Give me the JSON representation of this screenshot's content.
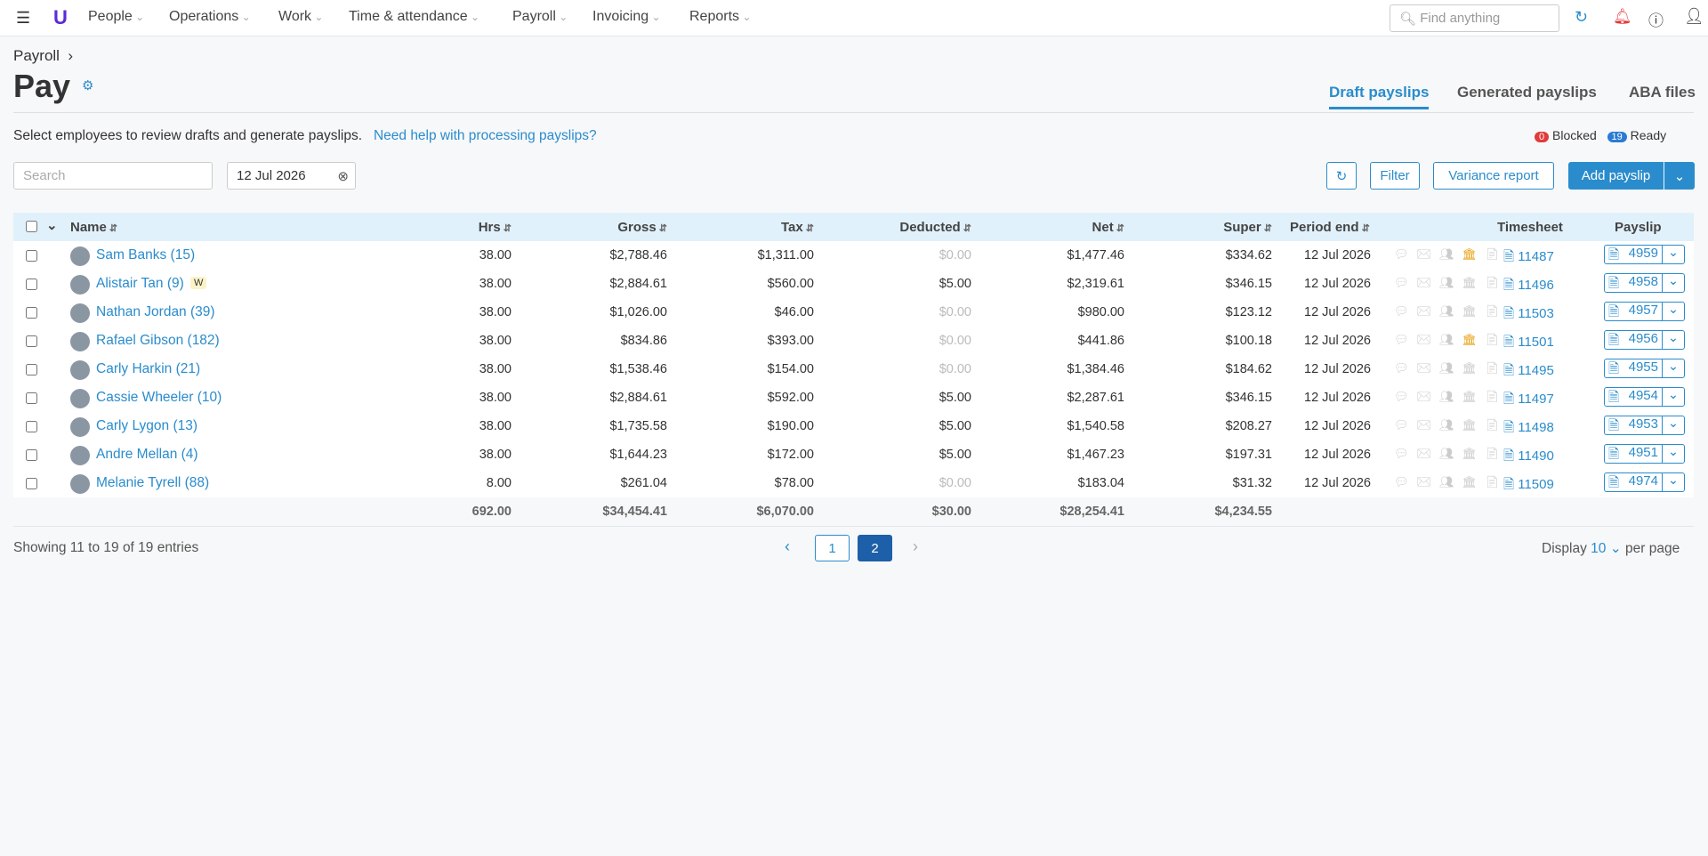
{
  "nav": {
    "items": [
      "People",
      "Operations",
      "Work",
      "Time & attendance",
      "Payroll",
      "Invoicing",
      "Reports"
    ],
    "search_placeholder": "Find anything"
  },
  "header": {
    "breadcrumb": "Payroll",
    "title": "Pay",
    "tabs": [
      "Draft payslips",
      "Generated payslips",
      "ABA files"
    ]
  },
  "intro": {
    "text": "Select employees to review drafts and generate payslips.",
    "help_link": "Need help with processing payslips?"
  },
  "status": {
    "blocked_count": "0",
    "blocked_label": "Blocked",
    "ready_count": "19",
    "ready_label": "Ready"
  },
  "toolbar": {
    "search_placeholder": "Search",
    "date": "12 Jul 2026",
    "filter": "Filter",
    "variance": "Variance report",
    "add": "Add payslip"
  },
  "table": {
    "columns": [
      "Name",
      "Hrs",
      "Gross",
      "Tax",
      "Deducted",
      "Net",
      "Super",
      "Period end",
      "Timesheet",
      "Payslip"
    ],
    "rows": [
      {
        "name": "Sam Banks (15)",
        "hrs": "38.00",
        "gross": "$2,788.46",
        "tax": "$1,311.00",
        "deducted": "$0.00",
        "net": "$1,477.46",
        "super": "$334.62",
        "period_end": "12 Jul 2026",
        "timesheet": "11487",
        "payslip": "4959"
      },
      {
        "name": "Alistair Tan (9)",
        "tag": "W",
        "hrs": "38.00",
        "gross": "$2,884.61",
        "tax": "$560.00",
        "deducted": "$5.00",
        "net": "$2,319.61",
        "super": "$346.15",
        "period_end": "12 Jul 2026",
        "timesheet": "11496",
        "payslip": "4958"
      },
      {
        "name": "Nathan Jordan (39)",
        "hrs": "38.00",
        "gross": "$1,026.00",
        "tax": "$46.00",
        "deducted": "$0.00",
        "net": "$980.00",
        "super": "$123.12",
        "period_end": "12 Jul 2026",
        "timesheet": "11503",
        "payslip": "4957"
      },
      {
        "name": "Rafael Gibson (182)",
        "hrs": "38.00",
        "gross": "$834.86",
        "tax": "$393.00",
        "deducted": "$0.00",
        "net": "$441.86",
        "super": "$100.18",
        "period_end": "12 Jul 2026",
        "timesheet": "11501",
        "payslip": "4956"
      },
      {
        "name": "Carly Harkin (21)",
        "hrs": "38.00",
        "gross": "$1,538.46",
        "tax": "$154.00",
        "deducted": "$0.00",
        "net": "$1,384.46",
        "super": "$184.62",
        "period_end": "12 Jul 2026",
        "timesheet": "11495",
        "payslip": "4955"
      },
      {
        "name": "Cassie Wheeler (10)",
        "hrs": "38.00",
        "gross": "$2,884.61",
        "tax": "$592.00",
        "deducted": "$5.00",
        "net": "$2,287.61",
        "super": "$346.15",
        "period_end": "12 Jul 2026",
        "timesheet": "11497",
        "payslip": "4954"
      },
      {
        "name": "Carly Lygon (13)",
        "hrs": "38.00",
        "gross": "$1,735.58",
        "tax": "$190.00",
        "deducted": "$5.00",
        "net": "$1,540.58",
        "super": "$208.27",
        "period_end": "12 Jul 2026",
        "timesheet": "11498",
        "payslip": "4953"
      },
      {
        "name": "Andre Mellan (4)",
        "hrs": "38.00",
        "gross": "$1,644.23",
        "tax": "$172.00",
        "deducted": "$5.00",
        "net": "$1,467.23",
        "super": "$197.31",
        "period_end": "12 Jul 2026",
        "timesheet": "11490",
        "payslip": "4951"
      },
      {
        "name": "Melanie Tyrell (88)",
        "hrs": "8.00",
        "gross": "$261.04",
        "tax": "$78.00",
        "deducted": "$0.00",
        "net": "$183.04",
        "super": "$31.32",
        "period_end": "12 Jul 2026",
        "timesheet": "11509",
        "payslip": "4974"
      }
    ],
    "totals": {
      "hrs": "692.00",
      "gross": "$34,454.41",
      "tax": "$6,070.00",
      "deducted": "$30.00",
      "net": "$28,254.41",
      "super": "$4,234.55"
    }
  },
  "footer": {
    "showing": "Showing 11 to 19 of 19 entries",
    "pages": [
      "1",
      "2"
    ],
    "display_label": "Display",
    "display_value": "10",
    "per_page": "per page"
  }
}
